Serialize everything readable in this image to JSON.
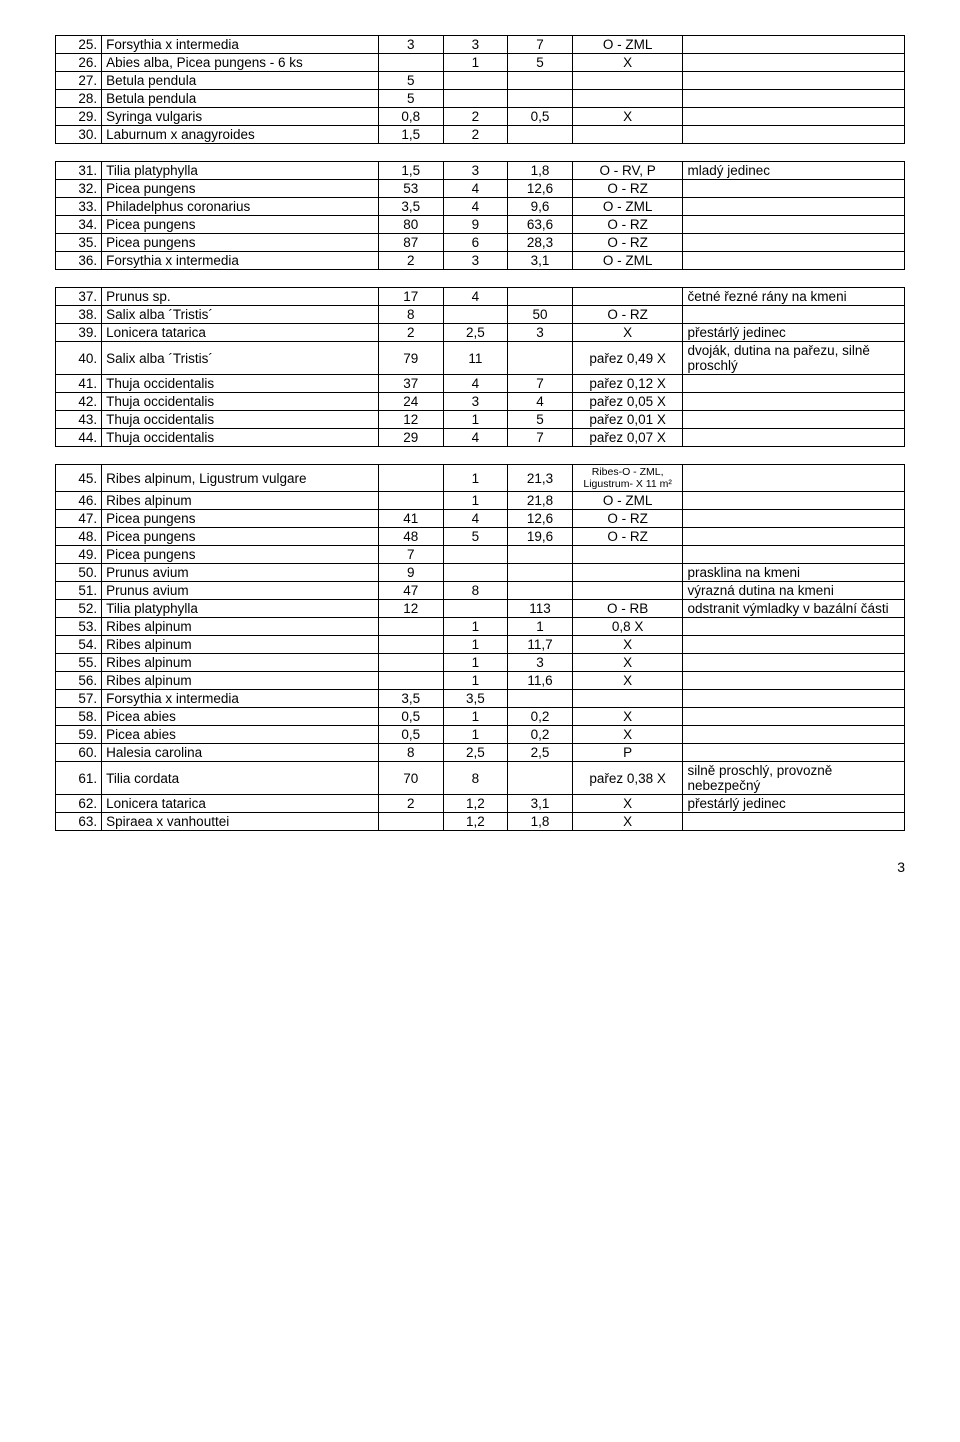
{
  "page_number": "3",
  "columns": [
    "num",
    "name",
    "v1",
    "v2",
    "v3",
    "v4",
    "note"
  ],
  "col_classes": [
    "c-num",
    "c-name",
    "c-v1",
    "c-v2",
    "c-v3",
    "c-v4",
    "c-note"
  ],
  "rows": [
    {
      "num": "25.",
      "name": "Forsythia x intermedia",
      "v1": "3",
      "v2": "3",
      "v3": "7",
      "v4": "O - ZML",
      "note": ""
    },
    {
      "num": "26.",
      "name": "Abies alba, Picea pungens - 6 ks",
      "v1": "",
      "v2": "1",
      "v3": "5",
      "v4": "X",
      "note": ""
    },
    {
      "num": "27.",
      "name": "Betula pendula",
      "v1": "5",
      "v2": "",
      "v3": "",
      "v4": "",
      "note": ""
    },
    {
      "num": "28.",
      "name": "Betula pendula",
      "v1": "5",
      "v2": "",
      "v3": "",
      "v4": "",
      "note": ""
    },
    {
      "num": "29.",
      "name": "Syringa vulgaris",
      "v1": "0,8",
      "v2": "2",
      "v3": "0,5",
      "v4": "X",
      "note": ""
    },
    {
      "num": "30.",
      "name": "Laburnum x anagyroides",
      "v1": "1,5",
      "v2": "2",
      "v3": "",
      "v4": "",
      "note": ""
    },
    {
      "spacer": true
    },
    {
      "num": "31.",
      "name": "Tilia platyphylla",
      "v1": "1,5",
      "v2": "3",
      "v3": "1,8",
      "v4": "O - RV, P",
      "note": "mladý jedinec"
    },
    {
      "num": "32.",
      "name": "Picea pungens",
      "v1": "53",
      "v2": "4",
      "v3": "",
      "v4": "12,6",
      "note": "",
      "v4b": "O - RZ"
    },
    {
      "num": "33.",
      "name": "Philadelphus coronarius",
      "v1": "3,5",
      "v2": "4",
      "v3": "9,6",
      "v4": "O - ZML",
      "note": ""
    },
    {
      "num": "34.",
      "name": "Picea pungens",
      "v1": "80",
      "v2": "9",
      "v3": "",
      "v4": "63,6",
      "note": "",
      "v4b": "O - RZ"
    },
    {
      "num": "35.",
      "name": "Picea pungens",
      "v1": "87",
      "v2": "6",
      "v3": "",
      "v4": "28,3",
      "note": "",
      "v4b": "O - RZ"
    },
    {
      "num": "36.",
      "name": "Forsythia x intermedia",
      "v1": "2",
      "v2": "3",
      "v3": "3,1",
      "v4": "O - ZML",
      "note": ""
    },
    {
      "spacer": true
    },
    {
      "num": "37.",
      "name": "Prunus sp.",
      "v1": "17",
      "v2": "4",
      "v3": "",
      "v4": "",
      "note": "četné řezné rány na kmeni"
    },
    {
      "num": "38.",
      "name": "Salix alba ´Tristis´",
      "v1": "8",
      "v2": "",
      "v3": "50",
      "v4": "O - RZ",
      "note": ""
    },
    {
      "num": "39.",
      "name": "Lonicera tatarica",
      "v1": "2",
      "v2": "2,5",
      "v3": "3",
      "v4": "X",
      "note": "přestárlý jedinec"
    },
    {
      "num": "40.",
      "name": "Salix alba ´Tristis´",
      "v1": "79",
      "v2": "11",
      "v3": "",
      "v4": "pařez 0,49",
      "note": "dvoják, dutina na pařezu, silně proschlý",
      "v4x": "X"
    },
    {
      "num": "41.",
      "name": "Thuja occidentalis",
      "v1": "37",
      "v2": "4",
      "v3": "7",
      "v4": "pařez 0,12",
      "note": "",
      "v4x": "X"
    },
    {
      "num": "42.",
      "name": "Thuja occidentalis",
      "v1": "24",
      "v2": "3",
      "v3": "4",
      "v4": "pařez 0,05",
      "note": "",
      "v4x": "X"
    },
    {
      "num": "43.",
      "name": "Thuja occidentalis",
      "v1": "12",
      "v2": "1",
      "v3": "5",
      "v4": "pařez 0,01",
      "note": "",
      "v4x": "X"
    },
    {
      "num": "44.",
      "name": "Thuja occidentalis",
      "v1": "29",
      "v2": "4",
      "v3": "7",
      "v4": "pařez 0,07",
      "note": "",
      "v4x": "X"
    },
    {
      "spacer": true
    },
    {
      "num": "45.",
      "name": "Ribes alpinum, Ligustrum vulgare",
      "v1": "",
      "v2": "1",
      "v3": "21,3",
      "v4": "Ribes-O - ZML, Ligustrum- X 11 m²",
      "note": "",
      "v4small": true
    },
    {
      "num": "46.",
      "name": "Ribes alpinum",
      "v1": "",
      "v2": "1",
      "v3": "21,8",
      "v4": "O - ZML",
      "note": ""
    },
    {
      "num": "47.",
      "name": "Picea pungens",
      "v1": "41",
      "v2": "4",
      "v3": "",
      "v4": "12,6",
      "note": "",
      "v4b": "O - RZ"
    },
    {
      "num": "48.",
      "name": "Picea pungens",
      "v1": "48",
      "v2": "5",
      "v3": "",
      "v4": "19,6",
      "note": "",
      "v4b": "O - RZ"
    },
    {
      "num": "49.",
      "name": "Picea pungens",
      "v1": "7",
      "v2": "",
      "v3": "",
      "v4": "",
      "note": ""
    },
    {
      "num": "50.",
      "name": "Prunus avium",
      "v1": "9",
      "v2": "",
      "v3": "",
      "v4": "",
      "note": "prasklina na kmeni"
    },
    {
      "num": "51.",
      "name": "Prunus avium",
      "v1": "47",
      "v2": "8",
      "v3": "",
      "v4": "",
      "note": "výrazná dutina na kmeni"
    },
    {
      "num": "52.",
      "name": "Tilia platyphylla",
      "v1": "12",
      "v2": "",
      "v3": "113",
      "v4": "O - RB",
      "note": "odstranit výmladky v bazální části"
    },
    {
      "num": "53.",
      "name": "Ribes alpinum",
      "v1": "",
      "v2": "1",
      "v3": "1",
      "v4": "0,8",
      "note": "",
      "v4x": "X"
    },
    {
      "num": "54.",
      "name": "Ribes alpinum",
      "v1": "",
      "v2": "1",
      "v3": "11,7",
      "v4": "X",
      "note": ""
    },
    {
      "num": "55.",
      "name": "Ribes alpinum",
      "v1": "",
      "v2": "1",
      "v3": "3",
      "v4": "X",
      "note": ""
    },
    {
      "num": "56.",
      "name": "Ribes alpinum",
      "v1": "",
      "v2": "1",
      "v3": "11,6",
      "v4": "X",
      "note": ""
    },
    {
      "num": "57.",
      "name": "Forsythia x intermedia",
      "v1": "3,5",
      "v2": "3,5",
      "v3": "",
      "v4": "",
      "note": ""
    },
    {
      "num": "58.",
      "name": "Picea abies",
      "v1": "0,5",
      "v2": "1",
      "v3": "0,2",
      "v4": "X",
      "note": ""
    },
    {
      "num": "59.",
      "name": "Picea abies",
      "v1": "0,5",
      "v2": "1",
      "v3": "0,2",
      "v4": "X",
      "note": ""
    },
    {
      "num": "60.",
      "name": "Halesia carolina",
      "v1": "8",
      "v2": "2,5",
      "v3": "2,5",
      "v4": "",
      "note": "",
      "v4x": "P"
    },
    {
      "num": "61.",
      "name": "Tilia cordata",
      "v1": "70",
      "v2": "8",
      "v3": "",
      "v4": "pařez 0,38",
      "note": "silně proschlý, provozně nebezpečný",
      "v4x": "X"
    },
    {
      "num": "62.",
      "name": "Lonicera tatarica",
      "v1": "2",
      "v2": "1,2",
      "v3": "3,1",
      "v4": "X",
      "note": "přestárlý jedinec"
    },
    {
      "num": "63.",
      "name": "Spiraea x vanhouttei",
      "v1": "",
      "v2": "1,2",
      "v3": "1,8",
      "v4": "X",
      "note": ""
    }
  ],
  "alt_rows": {
    "32": {
      "v3": "12,6",
      "v4": "O - RZ"
    },
    "34": {
      "v3": "63,6",
      "v4": "O - RZ"
    },
    "35": {
      "v3": "28,3",
      "v4": "O - RZ"
    },
    "47": {
      "v3": "12,6",
      "v4": "O - RZ"
    },
    "48": {
      "v3": "19,6",
      "v4": "O - RZ"
    },
    "53": {
      "v2": "1",
      "v3": "0,8",
      "v4": "X",
      "v1alt": "1"
    }
  }
}
